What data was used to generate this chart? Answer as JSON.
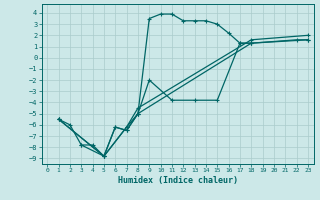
{
  "xlabel": "Humidex (Indice chaleur)",
  "bg_color": "#cce8e8",
  "grid_color": "#aacccc",
  "line_color": "#006666",
  "xlim": [
    -0.5,
    23.5
  ],
  "ylim": [
    -9.5,
    4.8
  ],
  "xticks": [
    0,
    1,
    2,
    3,
    4,
    5,
    6,
    7,
    8,
    9,
    10,
    11,
    12,
    13,
    14,
    15,
    16,
    17,
    18,
    19,
    20,
    21,
    22,
    23
  ],
  "yticks": [
    4,
    3,
    2,
    1,
    0,
    -1,
    -2,
    -3,
    -4,
    -5,
    -6,
    -7,
    -8,
    -9
  ],
  "line1_x": [
    1,
    2,
    3,
    4,
    5,
    6,
    7,
    8,
    9,
    10,
    11,
    12,
    13,
    14,
    15,
    16,
    17,
    18
  ],
  "line1_y": [
    -5.5,
    -6.0,
    -7.8,
    -7.8,
    -8.8,
    -6.2,
    -6.5,
    -5.0,
    3.5,
    3.9,
    3.9,
    3.3,
    3.3,
    3.3,
    3.0,
    2.2,
    1.3,
    1.3
  ],
  "line2_x": [
    3,
    5,
    6,
    7,
    8,
    9,
    11,
    13,
    15,
    17,
    18,
    22,
    23
  ],
  "line2_y": [
    -7.8,
    -8.8,
    -6.2,
    -6.5,
    -5.0,
    -2.0,
    -3.8,
    -3.8,
    -3.8,
    1.3,
    1.3,
    1.6,
    1.6
  ],
  "line3_x": [
    1,
    5,
    7,
    8,
    18,
    23
  ],
  "line3_y": [
    -5.5,
    -8.8,
    -6.2,
    -5.0,
    1.3,
    1.6
  ],
  "line4_x": [
    1,
    5,
    7,
    8,
    18,
    23
  ],
  "line4_y": [
    -5.5,
    -8.8,
    -6.2,
    -4.5,
    1.6,
    2.0
  ]
}
